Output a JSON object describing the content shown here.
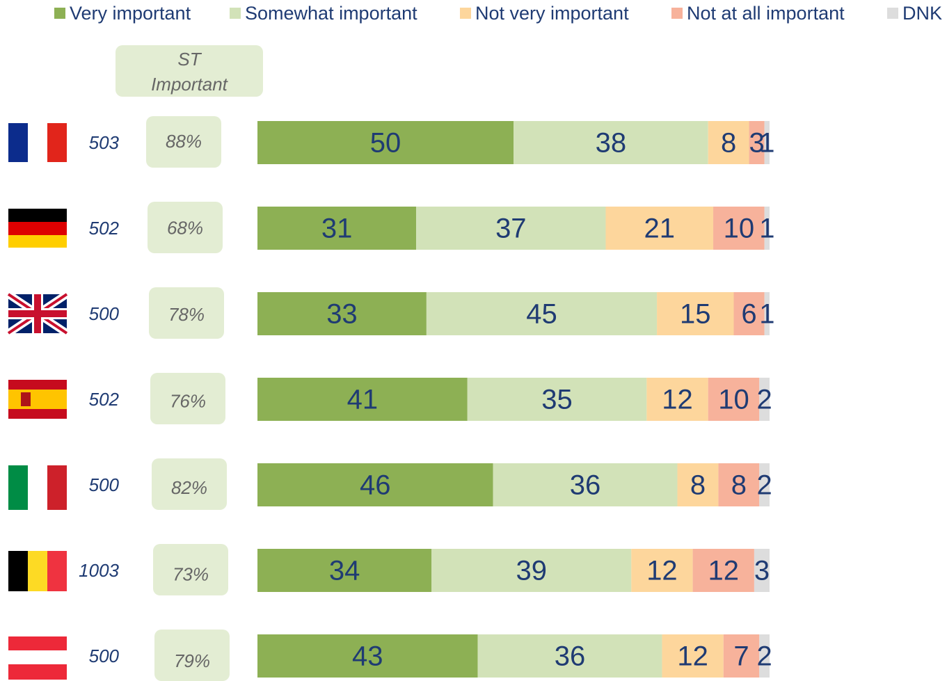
{
  "chart_data": {
    "type": "stacked_bar_horizontal",
    "categories": [
      null,
      null,
      null,
      null,
      null,
      null,
      null
    ],
    "sample_sizes": [
      503,
      502,
      500,
      502,
      500,
      1003,
      500
    ],
    "st_title": [
      "ST",
      "Important"
    ],
    "st_important": {
      "values": [
        88,
        68,
        78,
        76,
        82,
        73,
        79
      ],
      "value_labels": [
        "88%",
        "68%",
        "78%",
        "76%",
        "82%",
        "73%",
        "79%"
      ]
    },
    "xlim": [
      0,
      100
    ],
    "legend": "top",
    "series": [
      {
        "name": "Very important",
        "color": "#8db054",
        "values": [
          50,
          31,
          33,
          41,
          46,
          34,
          43
        ]
      },
      {
        "name": "Somewhat important",
        "color": "#d2e2b8",
        "values": [
          38,
          37,
          45,
          35,
          36,
          39,
          36
        ]
      },
      {
        "name": "Not very important",
        "color": "#fdd69c",
        "values": [
          8,
          21,
          15,
          12,
          8,
          12,
          12
        ]
      },
      {
        "name": "Not at all important",
        "color": "#f7b29b",
        "values": [
          3,
          10,
          6,
          10,
          8,
          12,
          7
        ]
      },
      {
        "name": "DNK",
        "color": "#dddddd",
        "values": [
          1,
          1,
          1,
          2,
          2,
          3,
          2
        ]
      }
    ]
  }
}
